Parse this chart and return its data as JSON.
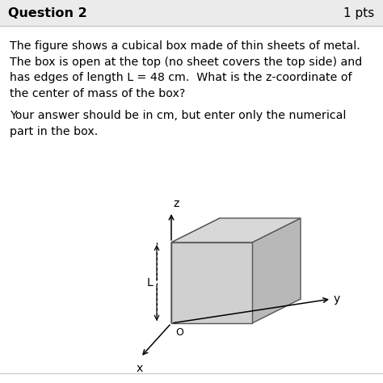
{
  "title": "Question 2",
  "pts": "1 pts",
  "line1": "The figure shows a cubical box made of thin sheets of metal.",
  "line2": "The box is open at the top (no sheet covers the top side) and",
  "line3": "has edges of length L = 48 cm.  What is the z-coordinate of",
  "line4": "the center of mass of the box?",
  "line5": "Your answer should be in cm, but enter only the numerical",
  "line6": "part in the box.",
  "header_bg": "#ebebeb",
  "face_front": "#d0d0d0",
  "face_left": "#c0c0c0",
  "face_right": "#b8b8b8",
  "face_top": "#d8d8d8",
  "face_bottom": "#c8c8c8"
}
